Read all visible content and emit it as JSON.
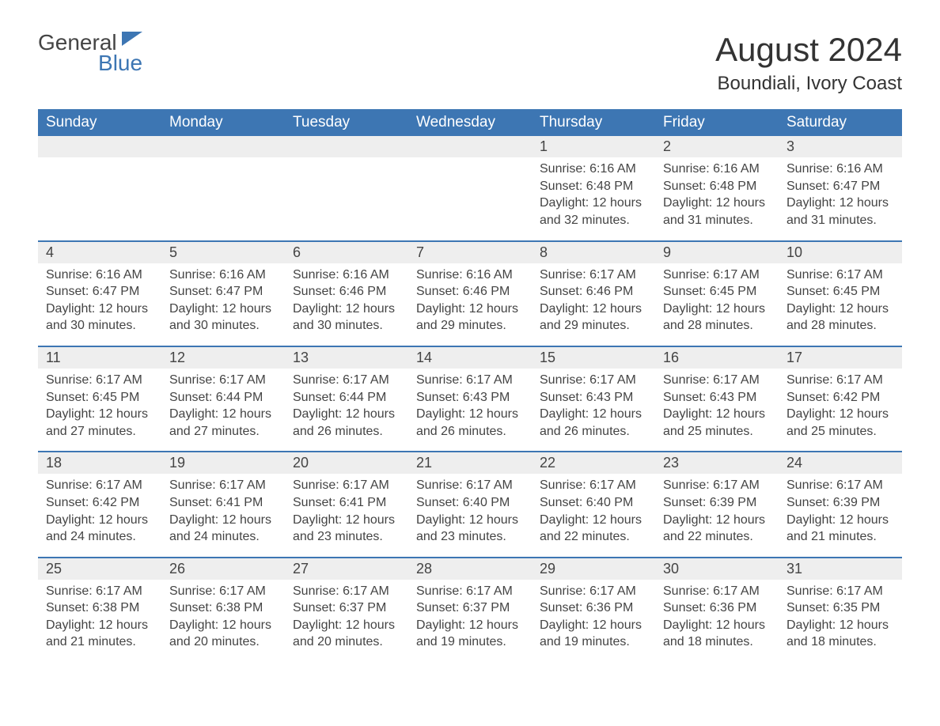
{
  "logo": {
    "word1": "General",
    "word2": "Blue"
  },
  "title": "August 2024",
  "location": "Boundiali, Ivory Coast",
  "colors": {
    "brand_blue": "#3d76b3",
    "header_text": "#ffffff",
    "cell_shade": "#eeeeee",
    "body_text": "#444444",
    "background": "#ffffff"
  },
  "typography": {
    "title_fontsize": 42,
    "location_fontsize": 24,
    "weekday_fontsize": 19,
    "daynum_fontsize": 18,
    "body_fontsize": 16
  },
  "calendar": {
    "weekdays": [
      "Sunday",
      "Monday",
      "Tuesday",
      "Wednesday",
      "Thursday",
      "Friday",
      "Saturday"
    ],
    "weeks": [
      [
        null,
        null,
        null,
        null,
        {
          "n": "1",
          "sunrise": "Sunrise: 6:16 AM",
          "sunset": "Sunset: 6:48 PM",
          "daylight": "Daylight: 12 hours and 32 minutes."
        },
        {
          "n": "2",
          "sunrise": "Sunrise: 6:16 AM",
          "sunset": "Sunset: 6:48 PM",
          "daylight": "Daylight: 12 hours and 31 minutes."
        },
        {
          "n": "3",
          "sunrise": "Sunrise: 6:16 AM",
          "sunset": "Sunset: 6:47 PM",
          "daylight": "Daylight: 12 hours and 31 minutes."
        }
      ],
      [
        {
          "n": "4",
          "sunrise": "Sunrise: 6:16 AM",
          "sunset": "Sunset: 6:47 PM",
          "daylight": "Daylight: 12 hours and 30 minutes."
        },
        {
          "n": "5",
          "sunrise": "Sunrise: 6:16 AM",
          "sunset": "Sunset: 6:47 PM",
          "daylight": "Daylight: 12 hours and 30 minutes."
        },
        {
          "n": "6",
          "sunrise": "Sunrise: 6:16 AM",
          "sunset": "Sunset: 6:46 PM",
          "daylight": "Daylight: 12 hours and 30 minutes."
        },
        {
          "n": "7",
          "sunrise": "Sunrise: 6:16 AM",
          "sunset": "Sunset: 6:46 PM",
          "daylight": "Daylight: 12 hours and 29 minutes."
        },
        {
          "n": "8",
          "sunrise": "Sunrise: 6:17 AM",
          "sunset": "Sunset: 6:46 PM",
          "daylight": "Daylight: 12 hours and 29 minutes."
        },
        {
          "n": "9",
          "sunrise": "Sunrise: 6:17 AM",
          "sunset": "Sunset: 6:45 PM",
          "daylight": "Daylight: 12 hours and 28 minutes."
        },
        {
          "n": "10",
          "sunrise": "Sunrise: 6:17 AM",
          "sunset": "Sunset: 6:45 PM",
          "daylight": "Daylight: 12 hours and 28 minutes."
        }
      ],
      [
        {
          "n": "11",
          "sunrise": "Sunrise: 6:17 AM",
          "sunset": "Sunset: 6:45 PM",
          "daylight": "Daylight: 12 hours and 27 minutes."
        },
        {
          "n": "12",
          "sunrise": "Sunrise: 6:17 AM",
          "sunset": "Sunset: 6:44 PM",
          "daylight": "Daylight: 12 hours and 27 minutes."
        },
        {
          "n": "13",
          "sunrise": "Sunrise: 6:17 AM",
          "sunset": "Sunset: 6:44 PM",
          "daylight": "Daylight: 12 hours and 26 minutes."
        },
        {
          "n": "14",
          "sunrise": "Sunrise: 6:17 AM",
          "sunset": "Sunset: 6:43 PM",
          "daylight": "Daylight: 12 hours and 26 minutes."
        },
        {
          "n": "15",
          "sunrise": "Sunrise: 6:17 AM",
          "sunset": "Sunset: 6:43 PM",
          "daylight": "Daylight: 12 hours and 26 minutes."
        },
        {
          "n": "16",
          "sunrise": "Sunrise: 6:17 AM",
          "sunset": "Sunset: 6:43 PM",
          "daylight": "Daylight: 12 hours and 25 minutes."
        },
        {
          "n": "17",
          "sunrise": "Sunrise: 6:17 AM",
          "sunset": "Sunset: 6:42 PM",
          "daylight": "Daylight: 12 hours and 25 minutes."
        }
      ],
      [
        {
          "n": "18",
          "sunrise": "Sunrise: 6:17 AM",
          "sunset": "Sunset: 6:42 PM",
          "daylight": "Daylight: 12 hours and 24 minutes."
        },
        {
          "n": "19",
          "sunrise": "Sunrise: 6:17 AM",
          "sunset": "Sunset: 6:41 PM",
          "daylight": "Daylight: 12 hours and 24 minutes."
        },
        {
          "n": "20",
          "sunrise": "Sunrise: 6:17 AM",
          "sunset": "Sunset: 6:41 PM",
          "daylight": "Daylight: 12 hours and 23 minutes."
        },
        {
          "n": "21",
          "sunrise": "Sunrise: 6:17 AM",
          "sunset": "Sunset: 6:40 PM",
          "daylight": "Daylight: 12 hours and 23 minutes."
        },
        {
          "n": "22",
          "sunrise": "Sunrise: 6:17 AM",
          "sunset": "Sunset: 6:40 PM",
          "daylight": "Daylight: 12 hours and 22 minutes."
        },
        {
          "n": "23",
          "sunrise": "Sunrise: 6:17 AM",
          "sunset": "Sunset: 6:39 PM",
          "daylight": "Daylight: 12 hours and 22 minutes."
        },
        {
          "n": "24",
          "sunrise": "Sunrise: 6:17 AM",
          "sunset": "Sunset: 6:39 PM",
          "daylight": "Daylight: 12 hours and 21 minutes."
        }
      ],
      [
        {
          "n": "25",
          "sunrise": "Sunrise: 6:17 AM",
          "sunset": "Sunset: 6:38 PM",
          "daylight": "Daylight: 12 hours and 21 minutes."
        },
        {
          "n": "26",
          "sunrise": "Sunrise: 6:17 AM",
          "sunset": "Sunset: 6:38 PM",
          "daylight": "Daylight: 12 hours and 20 minutes."
        },
        {
          "n": "27",
          "sunrise": "Sunrise: 6:17 AM",
          "sunset": "Sunset: 6:37 PM",
          "daylight": "Daylight: 12 hours and 20 minutes."
        },
        {
          "n": "28",
          "sunrise": "Sunrise: 6:17 AM",
          "sunset": "Sunset: 6:37 PM",
          "daylight": "Daylight: 12 hours and 19 minutes."
        },
        {
          "n": "29",
          "sunrise": "Sunrise: 6:17 AM",
          "sunset": "Sunset: 6:36 PM",
          "daylight": "Daylight: 12 hours and 19 minutes."
        },
        {
          "n": "30",
          "sunrise": "Sunrise: 6:17 AM",
          "sunset": "Sunset: 6:36 PM",
          "daylight": "Daylight: 12 hours and 18 minutes."
        },
        {
          "n": "31",
          "sunrise": "Sunrise: 6:17 AM",
          "sunset": "Sunset: 6:35 PM",
          "daylight": "Daylight: 12 hours and 18 minutes."
        }
      ]
    ]
  }
}
